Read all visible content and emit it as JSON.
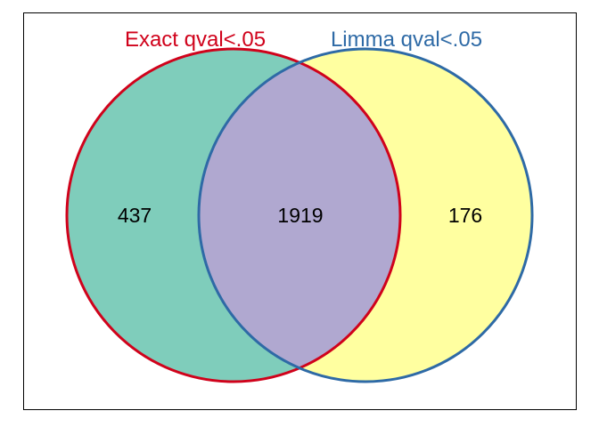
{
  "diagram": {
    "type": "venn",
    "sets": [
      {
        "name": "Exact qval<.05",
        "color": "#d0021b",
        "fill": "#7fcdbb"
      },
      {
        "name": "Limma qval<.05",
        "color": "#2e6aa6",
        "fill": "#ffffa0"
      }
    ],
    "overlap_fill": "#b0a8d0",
    "regions": {
      "only_a": "437",
      "both": "1919",
      "only_b": "176"
    }
  }
}
